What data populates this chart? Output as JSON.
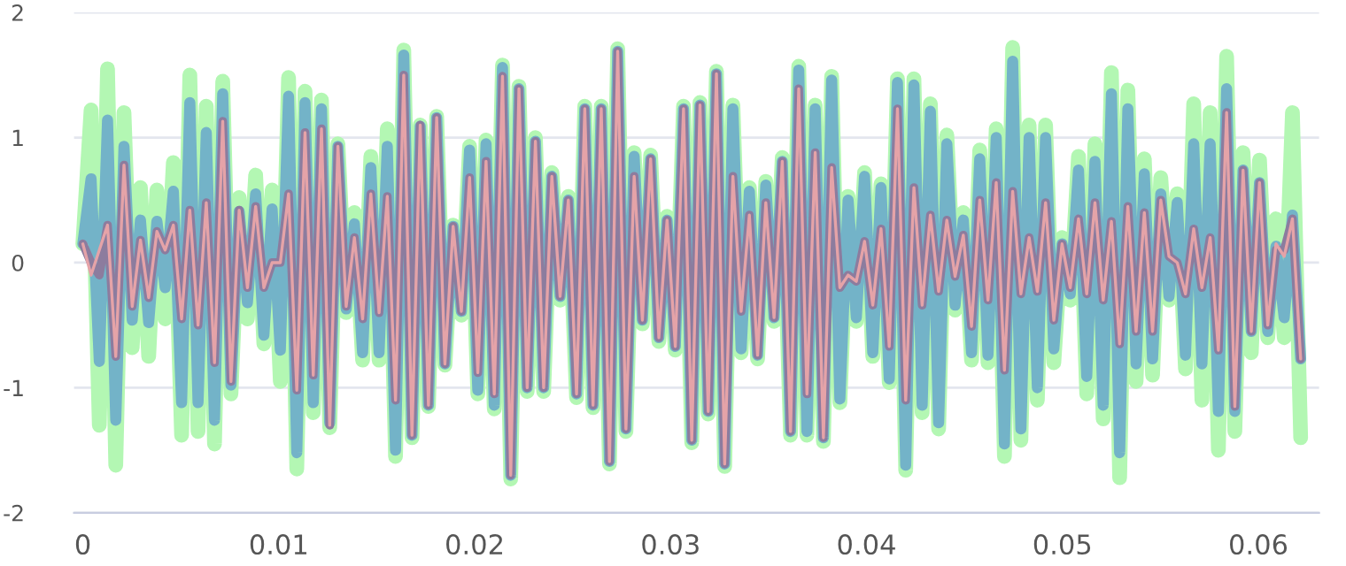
{
  "chart_data": {
    "type": "line",
    "grid": "y",
    "xlim": [
      -0.00045,
      0.0631
    ],
    "xticks": [
      0,
      0.01,
      0.02,
      0.03,
      0.04,
      0.05,
      0.06
    ],
    "ylim": [
      -2,
      2
    ],
    "yticks": [
      -2,
      -1,
      0,
      1,
      2
    ],
    "x": [
      0,
      0.00042,
      0.00084,
      0.00126,
      0.00168,
      0.0021,
      0.00252,
      0.00294,
      0.00336,
      0.00378,
      0.0042,
      0.00462,
      0.00504,
      0.00546,
      0.00588,
      0.0063,
      0.00672,
      0.00714,
      0.00756,
      0.00798,
      0.0084,
      0.00882,
      0.00924,
      0.00966,
      0.01008,
      0.0105,
      0.01092,
      0.01134,
      0.01176,
      0.01218,
      0.0126,
      0.01302,
      0.01344,
      0.01386,
      0.01428,
      0.0147,
      0.01512,
      0.01554,
      0.01596,
      0.01638,
      0.0168,
      0.01722,
      0.01764,
      0.01806,
      0.01848,
      0.0189,
      0.01932,
      0.01974,
      0.02016,
      0.02058,
      0.021,
      0.02142,
      0.02184,
      0.02226,
      0.02268,
      0.0231,
      0.02352,
      0.02394,
      0.02436,
      0.02478,
      0.0252,
      0.02562,
      0.02604,
      0.02646,
      0.02688,
      0.0273,
      0.02772,
      0.02814,
      0.02856,
      0.02898,
      0.0294,
      0.02982,
      0.03024,
      0.03066,
      0.03108,
      0.0315,
      0.03192,
      0.03234,
      0.03276,
      0.03318,
      0.0336,
      0.03402,
      0.03444,
      0.03486,
      0.03528,
      0.0357,
      0.03612,
      0.03654,
      0.03696,
      0.03738,
      0.0378,
      0.03822,
      0.03864,
      0.03906,
      0.03948,
      0.0399,
      0.04032,
      0.04074,
      0.04116,
      0.04158,
      0.042,
      0.04242,
      0.04284,
      0.04326,
      0.04368,
      0.0441,
      0.04452,
      0.04494,
      0.04536,
      0.04578,
      0.0462,
      0.04662,
      0.04704,
      0.04746,
      0.04788,
      0.0483,
      0.04872,
      0.04914,
      0.04956,
      0.04998,
      0.0504,
      0.05082,
      0.05124,
      0.05166,
      0.05208,
      0.0525,
      0.05292,
      0.05334,
      0.05376,
      0.05418,
      0.0546,
      0.05502,
      0.05544,
      0.05586,
      0.05628,
      0.0567,
      0.05712,
      0.05754,
      0.05796,
      0.05838,
      0.0588,
      0.05922,
      0.05964,
      0.06006,
      0.06048,
      0.0609,
      0.06132,
      0.06174,
      0.06216
    ],
    "series": [
      {
        "color": "#b3f7b3",
        "values": [
          0.15,
          1.22,
          -1.3,
          1.55,
          -1.62,
          1.2,
          -0.68,
          0.6,
          -0.75,
          0.58,
          -0.45,
          0.8,
          -1.38,
          1.5,
          -1.35,
          1.25,
          -1.45,
          1.45,
          -1.05,
          0.52,
          -0.45,
          0.7,
          -0.65,
          0.58,
          -0.95,
          1.48,
          -1.65,
          1.37,
          -1.2,
          1.3,
          -1.32,
          0.95,
          -0.4,
          0.4,
          -0.78,
          0.85,
          -0.78,
          1.07,
          -1.55,
          1.7,
          -1.4,
          1.1,
          -1.15,
          1.17,
          -0.82,
          0.3,
          -0.42,
          0.93,
          -1.05,
          0.98,
          -1.17,
          1.58,
          -1.73,
          1.41,
          -1.03,
          1.0,
          -1.03,
          0.72,
          -0.3,
          0.53,
          -1.08,
          1.25,
          -1.16,
          1.25,
          -1.61,
          1.71,
          -1.35,
          0.88,
          -0.49,
          0.86,
          -0.63,
          0.37,
          -0.7,
          1.25,
          -1.44,
          1.28,
          -1.21,
          1.53,
          -1.63,
          1.26,
          -0.72,
          0.6,
          -0.77,
          0.65,
          -0.47,
          0.84,
          -1.38,
          1.57,
          -1.38,
          1.26,
          -1.43,
          1.49,
          -1.12,
          0.53,
          -0.47,
          0.72,
          -0.75,
          0.63,
          -0.96,
          1.47,
          -1.66,
          1.47,
          -1.2,
          1.27,
          -1.33,
          1.02,
          -0.38,
          0.4,
          -0.78,
          0.9,
          -0.8,
          1.07,
          -1.55,
          1.72,
          -1.42,
          1.1,
          -1.1,
          1.1,
          -0.8,
          0.2,
          -0.3,
          0.85,
          -1.05,
          0.95,
          -1.25,
          1.52,
          -1.72,
          1.38,
          -0.95,
          0.83,
          -0.9,
          0.68,
          -0.3,
          0.55,
          -0.85,
          1.27,
          -1.1,
          1.2,
          -1.5,
          1.65,
          -1.35,
          0.88,
          -0.72,
          0.82,
          -0.6,
          0.35,
          -0.6,
          1.2,
          -1.4
        ]
      },
      {
        "color": "#73b3c8",
        "values": [
          0.15,
          0.67,
          -0.79,
          1.14,
          -1.26,
          0.93,
          -0.46,
          0.34,
          -0.48,
          0.33,
          -0.2,
          0.57,
          -1.12,
          1.28,
          -1.12,
          1.04,
          -1.26,
          1.35,
          -0.98,
          0.41,
          -0.32,
          0.55,
          -0.58,
          0.43,
          -0.7,
          1.33,
          -1.52,
          1.28,
          -1.12,
          1.23,
          -1.28,
          0.93,
          -0.37,
          0.31,
          -0.72,
          0.76,
          -0.72,
          0.93,
          -1.5,
          1.66,
          -1.38,
          1.09,
          -1.14,
          1.16,
          -0.81,
          0.29,
          -0.39,
          0.9,
          -1.02,
          0.95,
          -1.14,
          1.56,
          -1.7,
          1.39,
          -1.0,
          0.97,
          -1.0,
          0.69,
          -0.27,
          0.5,
          -1.05,
          1.23,
          -1.14,
          1.23,
          -1.59,
          1.69,
          -1.33,
          0.85,
          -0.46,
          0.83,
          -0.6,
          0.34,
          -0.67,
          1.23,
          -1.42,
          1.26,
          -1.19,
          1.51,
          -1.61,
          1.23,
          -0.69,
          0.57,
          -0.74,
          0.62,
          -0.44,
          0.81,
          -1.35,
          1.54,
          -1.35,
          1.23,
          -1.4,
          1.46,
          -1.09,
          0.5,
          -0.44,
          0.69,
          -0.72,
          0.6,
          -0.93,
          1.44,
          -1.62,
          1.42,
          -1.14,
          1.21,
          -1.28,
          0.95,
          -0.34,
          0.34,
          -0.72,
          0.83,
          -0.74,
          1.0,
          -1.45,
          1.61,
          -1.33,
          1.0,
          -1.0,
          1.0,
          -0.69,
          0.15,
          -0.25,
          0.74,
          -0.91,
          0.81,
          -1.14,
          1.35,
          -1.52,
          1.23,
          -0.81,
          0.71,
          -0.77,
          0.55,
          -0.27,
          0.48,
          -0.74,
          0.95,
          -0.81,
          0.95,
          -1.19,
          1.39,
          -1.19,
          0.74,
          -0.55,
          0.64,
          -0.55,
          0.13,
          -0.44,
          0.38,
          -0.77
        ]
      },
      {
        "color": "#8c7c9e",
        "values": [
          0.15,
          0.0,
          -0.1,
          0.3,
          -0.75,
          0.78,
          -0.35,
          0.18,
          -0.28,
          0.25,
          0.1,
          0.3,
          -0.45,
          0.42,
          -0.5,
          0.48,
          -0.8,
          1.13,
          -0.95,
          0.42,
          -0.2,
          0.45,
          -0.2,
          0.0,
          0.0,
          0.55,
          -1.02,
          1.04,
          -0.9,
          1.07,
          -1.3,
          0.93,
          -0.35,
          0.2,
          -0.45,
          0.55,
          -0.4,
          0.53,
          -1.1,
          1.5,
          -1.38,
          1.1,
          -1.14,
          1.16,
          -0.81,
          0.29,
          -0.39,
          0.68,
          -0.88,
          0.81,
          -1.05,
          1.49,
          -1.7,
          1.39,
          -1.0,
          0.97,
          -1.0,
          0.69,
          -0.27,
          0.5,
          -1.05,
          1.23,
          -1.14,
          1.23,
          -1.59,
          1.69,
          -1.33,
          0.69,
          -0.46,
          0.83,
          -0.6,
          0.34,
          -0.67,
          1.23,
          -1.42,
          1.26,
          -1.19,
          1.51,
          -1.61,
          0.69,
          -0.39,
          0.38,
          -0.74,
          0.48,
          -0.44,
          0.81,
          -1.35,
          1.39,
          -1.05,
          0.88,
          -1.4,
          0.76,
          -0.2,
          -0.1,
          -0.15,
          0.17,
          -0.34,
          0.27,
          -0.67,
          1.23,
          -1.1,
          0.6,
          -0.34,
          0.38,
          -0.23,
          0.34,
          -0.11,
          0.22,
          -0.51,
          0.5,
          -0.3,
          0.64,
          -0.86,
          0.57,
          -0.25,
          0.2,
          -0.23,
          0.48,
          -0.46,
          0.15,
          -0.2,
          0.35,
          -0.25,
          0.48,
          -0.3,
          0.33,
          -0.65,
          0.45,
          -0.55,
          0.4,
          -0.55,
          0.5,
          0.05,
          0.0,
          -0.25,
          0.27,
          -0.2,
          0.2,
          -0.7,
          1.2,
          -1.15,
          0.74,
          -0.55,
          0.64,
          -0.5,
          0.1,
          0.1,
          0.35,
          -0.77
        ]
      },
      {
        "color": "#e5a3a8",
        "values": [
          0.15,
          -0.1,
          0.1,
          0.3,
          -0.75,
          0.78,
          -0.35,
          0.18,
          -0.28,
          0.25,
          0.1,
          0.3,
          -0.45,
          0.42,
          -0.5,
          0.48,
          -0.8,
          1.13,
          -0.95,
          0.42,
          -0.2,
          0.45,
          -0.2,
          0.0,
          0.0,
          0.55,
          -1.02,
          1.04,
          -0.9,
          1.07,
          -1.3,
          0.93,
          -0.35,
          0.2,
          -0.45,
          0.55,
          -0.4,
          0.53,
          -1.1,
          1.5,
          -1.38,
          1.1,
          -1.14,
          1.16,
          -0.81,
          0.29,
          -0.39,
          0.68,
          -0.88,
          0.81,
          -1.05,
          1.49,
          -1.7,
          1.39,
          -1.0,
          0.97,
          -1.0,
          0.69,
          -0.27,
          0.5,
          -1.05,
          1.23,
          -1.14,
          1.23,
          -1.59,
          1.69,
          -1.33,
          0.69,
          -0.46,
          0.83,
          -0.6,
          0.34,
          -0.67,
          1.23,
          -1.42,
          1.26,
          -1.19,
          1.51,
          -1.61,
          0.69,
          -0.39,
          0.38,
          -0.74,
          0.48,
          -0.44,
          0.81,
          -1.35,
          1.39,
          -1.05,
          0.88,
          -1.4,
          0.76,
          -0.2,
          -0.1,
          -0.15,
          0.17,
          -0.34,
          0.27,
          -0.67,
          1.23,
          -1.1,
          0.6,
          -0.34,
          0.38,
          -0.23,
          0.34,
          -0.11,
          0.22,
          -0.51,
          0.5,
          -0.3,
          0.64,
          -0.86,
          0.57,
          -0.25,
          0.2,
          -0.23,
          0.48,
          -0.46,
          0.15,
          -0.2,
          0.35,
          -0.25,
          0.48,
          -0.3,
          0.33,
          -0.65,
          0.45,
          -0.55,
          0.4,
          -0.55,
          0.5,
          0.05,
          0.0,
          -0.25,
          0.27,
          -0.2,
          0.2,
          -0.7,
          1.2,
          -1.15,
          0.74,
          -0.55,
          0.64,
          -0.5,
          0.15,
          0.05,
          0.35,
          -0.77
        ]
      }
    ]
  }
}
